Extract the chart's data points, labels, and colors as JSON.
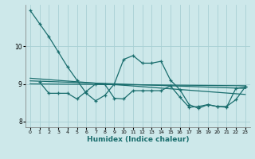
{
  "xlabel": "Humidex (Indice chaleur)",
  "bg_color": "#cde8ea",
  "grid_color": "#a8d0d4",
  "line_color": "#1a6e6e",
  "xlim": [
    -0.5,
    23.5
  ],
  "ylim": [
    7.85,
    11.1
  ],
  "yticks": [
    8,
    9,
    10
  ],
  "xticks": [
    0,
    1,
    2,
    3,
    4,
    5,
    6,
    7,
    8,
    9,
    10,
    11,
    12,
    13,
    14,
    15,
    16,
    17,
    18,
    19,
    20,
    21,
    22,
    23
  ],
  "series1_x": [
    0,
    1,
    2,
    3,
    4,
    5,
    6,
    7,
    8,
    9,
    10,
    11,
    12,
    13,
    14,
    15,
    16,
    17,
    18,
    19,
    20,
    21,
    22,
    23
  ],
  "series1_y": [
    10.95,
    10.6,
    10.25,
    9.85,
    9.45,
    9.1,
    8.75,
    8.55,
    8.7,
    9.0,
    9.65,
    9.75,
    9.55,
    9.55,
    9.6,
    9.1,
    8.85,
    8.45,
    8.35,
    8.45,
    8.4,
    8.38,
    8.88,
    8.92
  ],
  "series2_x": [
    1,
    2,
    3,
    4,
    5,
    6,
    7,
    8,
    9,
    10,
    11,
    12,
    13,
    14,
    15,
    16,
    17,
    18,
    19,
    20,
    21,
    22,
    23
  ],
  "series2_y": [
    9.05,
    8.75,
    8.75,
    8.75,
    8.6,
    8.8,
    9.0,
    8.98,
    8.62,
    8.6,
    8.82,
    8.82,
    8.82,
    8.82,
    8.95,
    8.65,
    8.38,
    8.4,
    8.45,
    8.4,
    8.4,
    8.58,
    8.92
  ],
  "trend1_x": [
    0,
    23
  ],
  "trend1_y": [
    9.15,
    8.72
  ],
  "trend2_x": [
    0,
    23
  ],
  "trend2_y": [
    9.08,
    8.88
  ],
  "trend3_x": [
    0,
    23
  ],
  "trend3_y": [
    9.0,
    8.95
  ]
}
